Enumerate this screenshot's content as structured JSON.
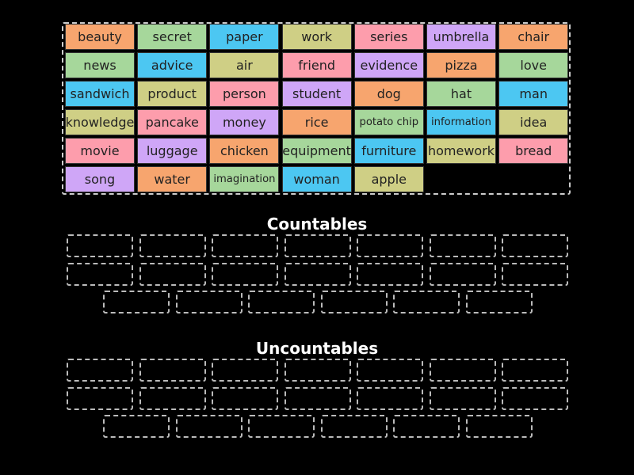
{
  "word_bank": {
    "words": [
      "beauty",
      "secret",
      "paper",
      "work",
      "series",
      "umbrella",
      "chair",
      "news",
      "advice",
      "air",
      "friend",
      "evidence",
      "pizza",
      "love",
      "sandwich",
      "product",
      "person",
      "student",
      "dog",
      "hat",
      "man",
      "knowledge",
      "pancake",
      "money",
      "rice",
      "potato chip",
      "information",
      "idea",
      "movie",
      "luggage",
      "chicken",
      "equipment",
      "furniture",
      "homework",
      "bread",
      "song",
      "water",
      "imagination",
      "woman",
      "apple"
    ]
  },
  "groups": [
    {
      "title": "Countables"
    },
    {
      "title": "Uncountables"
    }
  ]
}
